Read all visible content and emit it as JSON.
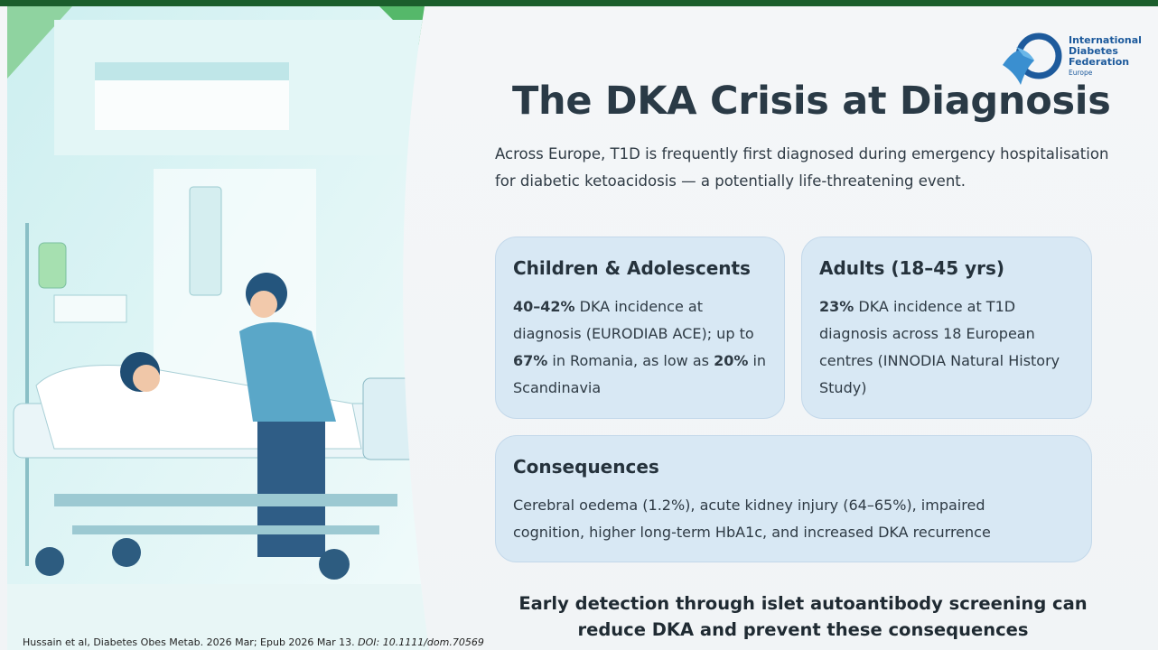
{
  "logo": {
    "name": [
      "International",
      "Diabetes",
      "Federation"
    ],
    "region": "Europe"
  },
  "slide": {
    "title": "The DKA Crisis at Diagnosis",
    "intro": "Across Europe, T1D is frequently first diagnosed during emergency hospitalisation for diabetic ketoacidosis — a potentially life-threatening event.",
    "cards": [
      {
        "heading": "Children & Adolescents",
        "body": [
          {
            "text": "40–42%",
            "bold": true
          },
          {
            "text": " DKA incidence at diagnosis (EURODIAB ACE); up to "
          },
          {
            "text": "67%",
            "bold": true
          },
          {
            "text": " in Romania, as low as "
          },
          {
            "text": "20%",
            "bold": true
          },
          {
            "text": " in Scandinavia"
          }
        ]
      },
      {
        "heading": "Adults (18–45 yrs)",
        "body": [
          {
            "text": "23%",
            "bold": true
          },
          {
            "text": " DKA incidence at T1D diagnosis across 18 European centres (INNODIA Natural History Study)"
          }
        ]
      },
      {
        "heading": "Consequences",
        "body": [
          {
            "text": "Cerebral oedema (1.2%), acute kidney injury (64–65%), impaired cognition, higher long-term HbA1c, and increased DKA recurrence"
          }
        ]
      }
    ],
    "conclusion": "Early detection through islet autoantibody screening can reduce DKA and prevent these consequences",
    "citation": [
      {
        "text": "Hussain et al, Diabetes Obes Metab. 2026 Mar; Epub 2026 Mar 13. "
      },
      {
        "text": "DOI: 10.1111/dom.70569",
        "italic": true
      }
    ]
  }
}
